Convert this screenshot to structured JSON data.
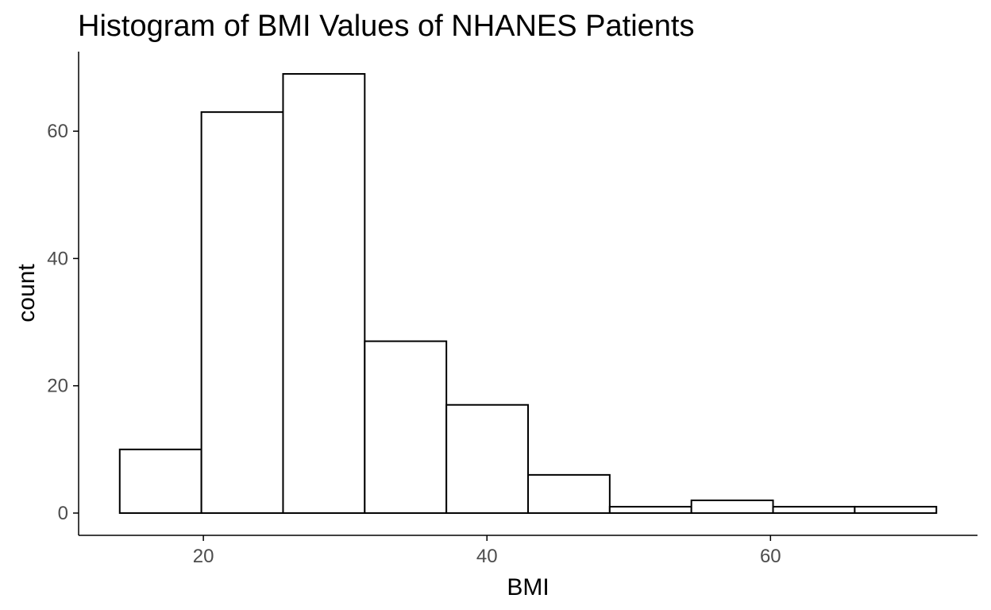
{
  "chart_data": {
    "type": "bar",
    "title": "Histogram of BMI Values of NHANES Patients",
    "xlabel": "BMI",
    "ylabel": "count",
    "bin_edges": [
      14.1,
      19.86,
      25.62,
      31.38,
      37.14,
      42.9,
      48.66,
      54.42,
      60.18,
      65.94,
      71.7
    ],
    "values": [
      10,
      63,
      69,
      27,
      17,
      6,
      1,
      2,
      1,
      1
    ],
    "xlim": [
      11.2,
      74.6
    ],
    "ylim": [
      -3.5,
      72.5
    ],
    "xticks": [
      20,
      40,
      60
    ],
    "xtick_labels": [
      "20",
      "40",
      "60"
    ],
    "yticks": [
      0,
      20,
      40,
      60
    ],
    "ytick_labels": [
      "0",
      "20",
      "40",
      "60"
    ],
    "grid": false,
    "fill_color": "#ffffff",
    "stroke_color": "#000000"
  }
}
